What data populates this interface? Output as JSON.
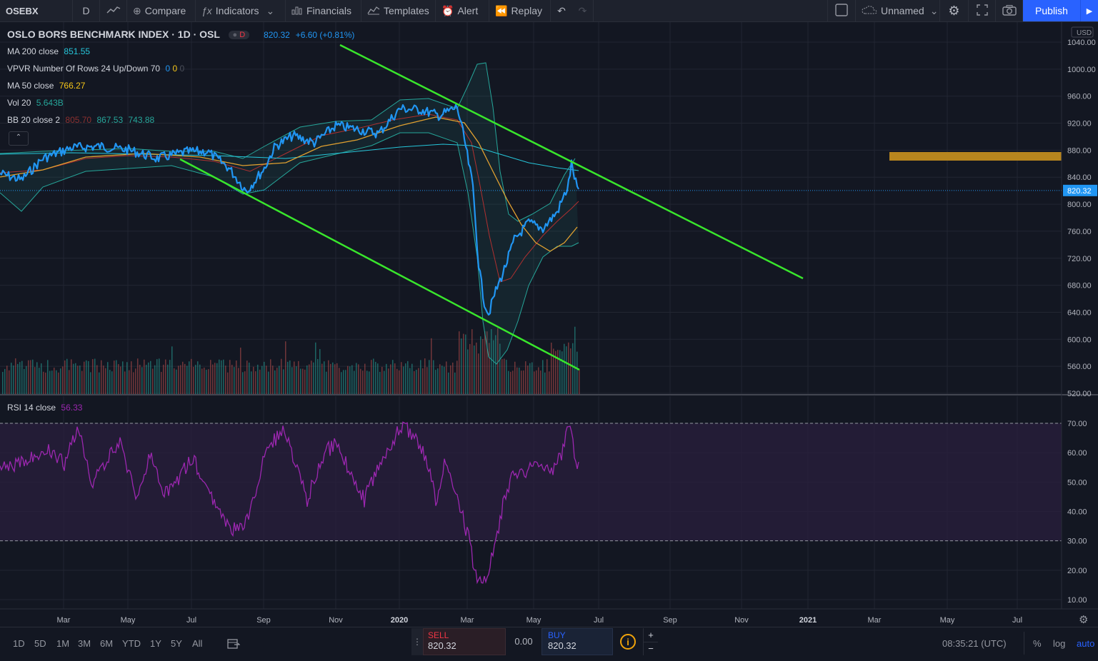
{
  "toolbar": {
    "symbol": "OSEBX",
    "interval": "D",
    "compare": "Compare",
    "indicators": "Indicators",
    "financials": "Financials",
    "templates": "Templates",
    "alert": "Alert",
    "replay": "Replay",
    "layout_name": "Unnamed",
    "publish": "Publish"
  },
  "legend": {
    "title": "OSLO BORS BENCHMARK INDEX · 1D · OSL",
    "badge": "D",
    "price": "820.32",
    "change": "+6.60 (+0.81%)",
    "ma200_label": "MA 200 close",
    "ma200_value": "851.55",
    "vpvr_label": "VPVR Number Of Rows 24 Up/Down 70",
    "vpvr_v1": "0",
    "vpvr_v2": "0",
    "vpvr_v3": "0",
    "ma50_label": "MA 50 close",
    "ma50_value": "766.27",
    "vol_label": "Vol 20",
    "vol_value": "5.643B",
    "bb_label": "BB 20 close 2",
    "bb_basis": "805.70",
    "bb_upper": "867.53",
    "bb_lower": "743.88",
    "rsi_label": "RSI 14 close",
    "rsi_value": "56.33"
  },
  "price_axis": {
    "currency": "USD",
    "ticks": [
      "1040.00",
      "1000.00",
      "960.00",
      "920.00",
      "880.00",
      "840.00",
      "800.00",
      "760.00",
      "720.00",
      "680.00",
      "640.00",
      "600.00",
      "560.00",
      "520.00"
    ],
    "last": "820.32"
  },
  "rsi_axis": {
    "ticks": [
      "70.00",
      "60.00",
      "50.00",
      "40.00",
      "30.00",
      "20.00",
      "10.00"
    ]
  },
  "time_axis": {
    "labels": [
      "Mar",
      "May",
      "Jul",
      "Sep",
      "Nov",
      "2020",
      "Mar",
      "May",
      "Jul",
      "Sep",
      "Nov",
      "2021",
      "Mar",
      "May",
      "Jul"
    ]
  },
  "bottom": {
    "ranges": [
      "1D",
      "5D",
      "1M",
      "3M",
      "6M",
      "YTD",
      "1Y",
      "5Y",
      "All"
    ],
    "sell_label": "SELL",
    "sell_value": "820.32",
    "spread": "0.00",
    "buy_label": "BUY",
    "buy_value": "820.32",
    "clock": "08:35:21 (UTC)",
    "percent": "%",
    "log": "log",
    "auto": "auto"
  },
  "colors": {
    "price_line": "#2196f3",
    "trend_lines": "#39e62c",
    "ma50": "#e0a030",
    "bb_basis": "#b03030",
    "bb_band": "#26a69a",
    "rsi": "#9c27b0",
    "resistance_zone": "#b8861e",
    "accent": "#2962ff"
  }
}
